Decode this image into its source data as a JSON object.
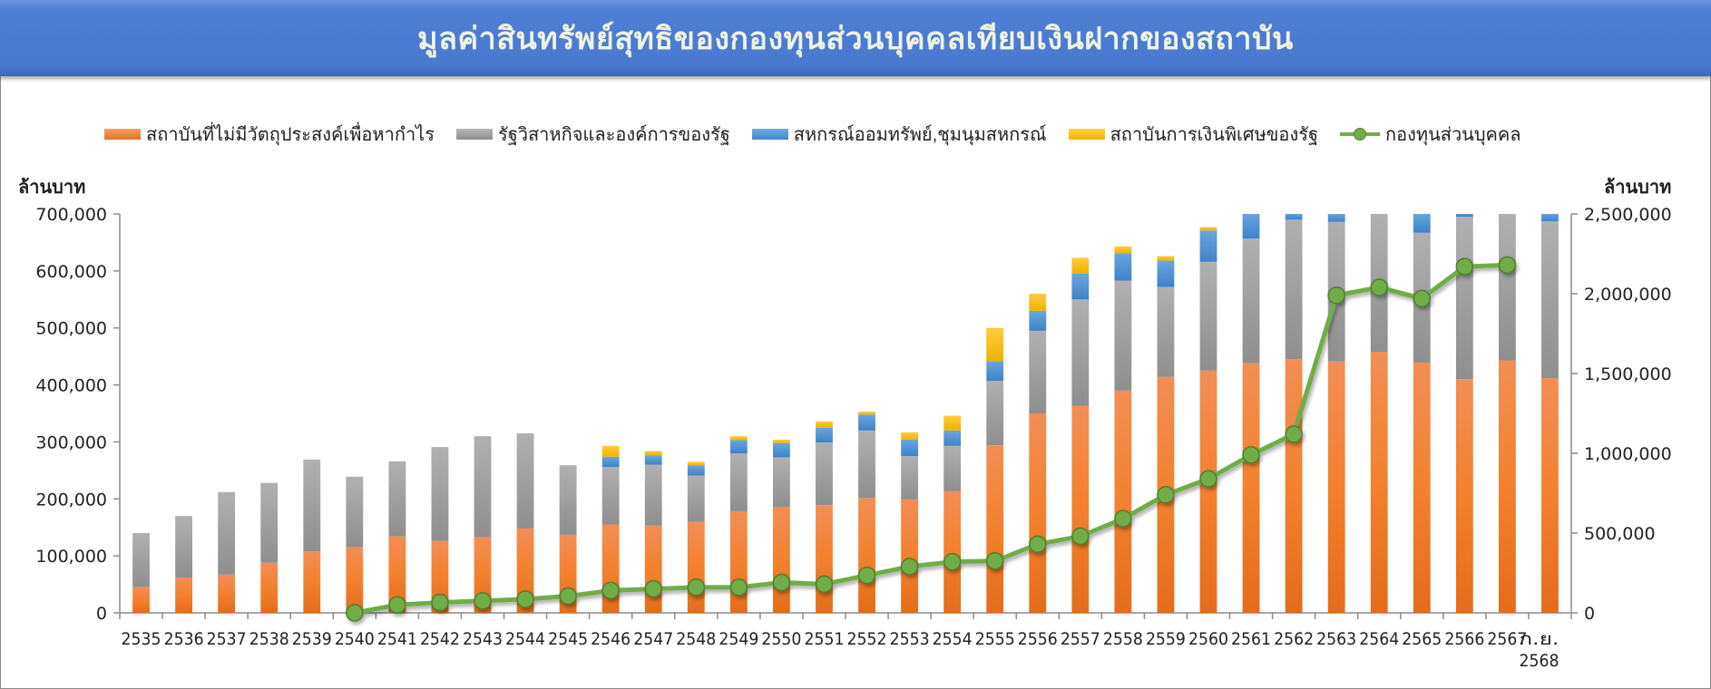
{
  "title": "มูลค่าสินทรัพย์สุทธิของกองทุนส่วนบุคคลเทียบเงินฝากของสถาบัน",
  "legend": [
    {
      "label": "สถาบันที่ไม่มีวัตถุประสงค์เพื่อหากำไร",
      "color": "#ed7d31",
      "type": "bar"
    },
    {
      "label": "รัฐวิสาหกิจและองค์การของรัฐ",
      "color": "#a5a5a5",
      "type": "bar"
    },
    {
      "label": "สหกรณ์ออมทรัพย์,ชุมนุมสหกรณ์",
      "color": "#5b9bd5",
      "type": "bar"
    },
    {
      "label": "สถาบันการเงินพิเศษของรัฐ",
      "color": "#ffc000",
      "type": "bar"
    },
    {
      "label": "กองทุนส่วนบุคคล",
      "color": "#70ad47",
      "type": "line"
    }
  ],
  "axes": {
    "left_title": "ล้านบาท",
    "right_title": "ล้านบาท",
    "left_ticks": [
      "0",
      "100,000",
      "200,000",
      "300,000",
      "400,000",
      "500,000",
      "600,000",
      "700,000"
    ],
    "right_ticks": [
      "0",
      "500,000",
      "1,000,000",
      "1,500,000",
      "2,000,000",
      "2,500,000"
    ]
  },
  "chart_data": {
    "type": "bar",
    "subtype": "stacked bar + line (secondary axis)",
    "title": "มูลค่าสินทรัพย์สุทธิของกองทุนส่วนบุคคลเทียบเงินฝากของสถาบัน",
    "ylabel": "ล้านบาท",
    "y2label": "ล้านบาท",
    "ylim": [
      0,
      700000
    ],
    "y2lim": [
      0,
      2500000
    ],
    "grid": false,
    "legend_position": "top",
    "categories": [
      "2535",
      "2536",
      "2537",
      "2538",
      "2539",
      "2540",
      "2541",
      "2542",
      "2543",
      "2544",
      "2545",
      "2546",
      "2547",
      "2548",
      "2549",
      "2550",
      "2551",
      "2552",
      "2553",
      "2554",
      "2555",
      "2556",
      "2557",
      "2558",
      "2559",
      "2560",
      "2561",
      "2562",
      "2563",
      "2564",
      "2565",
      "2566",
      "2567",
      "ก.ย. 2568"
    ],
    "series": [
      {
        "name": "สถาบันที่ไม่มีวัตถุประสงค์เพื่อหากำไร",
        "axis": "left",
        "type": "bar",
        "values": [
          45000,
          62000,
          67000,
          88000,
          108000,
          115000,
          134000,
          126000,
          133000,
          148000,
          137000,
          155000,
          153000,
          160000,
          178000,
          185000,
          189000,
          202000,
          199000,
          214000,
          294000,
          350000,
          363000,
          390000,
          414000,
          425000,
          438000,
          445000,
          441000,
          458000,
          439000,
          410000,
          443000,
          412000
        ]
      },
      {
        "name": "รัฐวิสาหกิจและองค์การของรัฐ",
        "axis": "left",
        "type": "bar",
        "values": [
          95000,
          108000,
          145000,
          140000,
          161000,
          124000,
          132000,
          165000,
          177000,
          167000,
          122000,
          101000,
          107000,
          81000,
          102000,
          88000,
          110000,
          118000,
          76000,
          79000,
          113000,
          145000,
          187000,
          193000,
          158000,
          191000,
          219000,
          245000,
          245000,
          242000,
          228000,
          285000,
          257000,
          275000
        ]
      },
      {
        "name": "สหกรณ์ออมทรัพย์,ชุมนุมสหกรณ์",
        "axis": "left",
        "type": "bar",
        "values": [
          0,
          0,
          0,
          0,
          0,
          0,
          0,
          0,
          0,
          0,
          0,
          18000,
          16000,
          18000,
          23000,
          25000,
          26000,
          28000,
          29000,
          27000,
          35000,
          35000,
          45000,
          48000,
          46000,
          55000,
          45000,
          12000,
          15000,
          0,
          35000,
          8000,
          0,
          15000
        ]
      },
      {
        "name": "สถาบันการเงินพิเศษของรัฐ",
        "axis": "left",
        "type": "bar",
        "values": [
          0,
          0,
          0,
          0,
          0,
          0,
          0,
          0,
          0,
          0,
          0,
          19000,
          8000,
          6000,
          7000,
          6000,
          11000,
          5000,
          13000,
          26000,
          58000,
          30000,
          28000,
          12000,
          8000,
          6000,
          0,
          0,
          0,
          0,
          0,
          0,
          0,
          0
        ]
      },
      {
        "name": "กองทุนส่วนบุคคล",
        "axis": "right",
        "type": "line",
        "values": [
          null,
          null,
          null,
          null,
          null,
          0,
          50000,
          65000,
          75000,
          85000,
          105000,
          140000,
          150000,
          160000,
          160000,
          190000,
          180000,
          235000,
          290000,
          320000,
          325000,
          430000,
          480000,
          590000,
          740000,
          840000,
          990000,
          1120000,
          1990000,
          2040000,
          1970000,
          2170000,
          2180000,
          null
        ]
      }
    ]
  }
}
